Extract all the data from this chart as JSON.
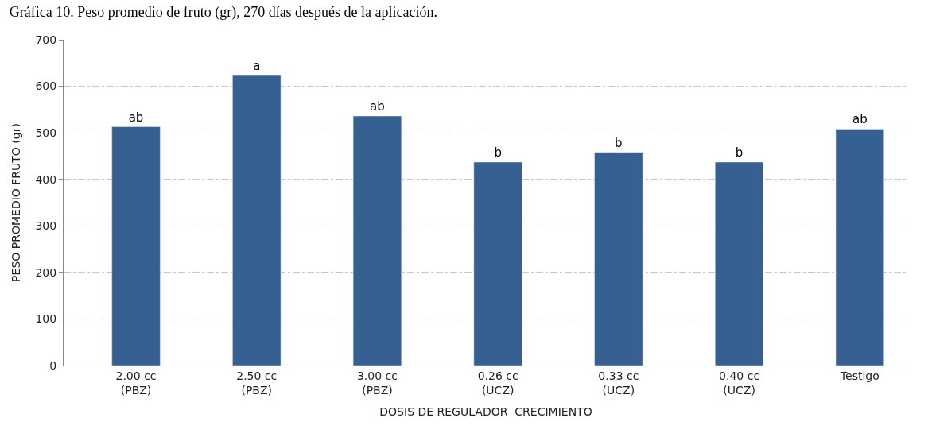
{
  "chart_data": {
    "type": "bar",
    "title": "Gráfica 10. Peso promedio de fruto (gr), 270 días después de la aplicación.",
    "xlabel": "DOSIS DE REGULADOR  CRECIMIENTO",
    "ylabel": "PESO PROMEDIO FRUTO (gr)",
    "categories": [
      "2.00 cc\n(PBZ)",
      "2.50 cc\n(PBZ)",
      "3.00 cc\n(PBZ)",
      "0.26 cc\n(UCZ)",
      "0.33 cc\n(UCZ)",
      "0.40 cc\n(UCZ)",
      "Testigo"
    ],
    "values": [
      513,
      623,
      536,
      437,
      458,
      437,
      508
    ],
    "value_labels": [
      "ab",
      "a",
      "ab",
      "b",
      "b",
      "b",
      "ab"
    ],
    "color": "#366092",
    "ylim": [
      0,
      700
    ],
    "yticks": [
      0,
      100,
      200,
      300,
      400,
      500,
      600,
      700
    ],
    "grid": "y"
  }
}
